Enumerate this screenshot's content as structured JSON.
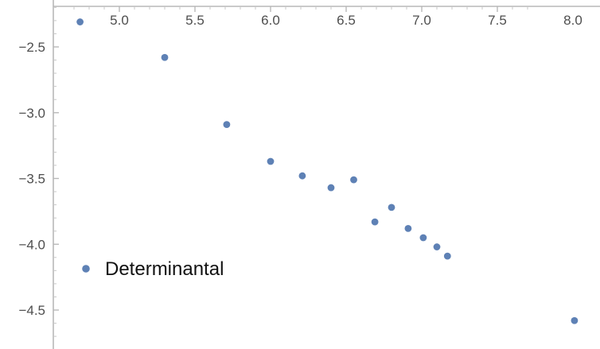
{
  "chart_data": {
    "type": "scatter",
    "title": "",
    "xlabel": "",
    "ylabel": "",
    "xlim": [
      4.65,
      8.08
    ],
    "ylim": [
      -4.7,
      -2.2
    ],
    "x_ticks": [
      5.0,
      5.5,
      6.0,
      6.5,
      7.0,
      7.5,
      8.0
    ],
    "x_tick_labels": [
      "5.0",
      "5.5",
      "6.0",
      "6.5",
      "7.0",
      "7.5",
      "8.0"
    ],
    "y_ticks": [
      -2.5,
      -3.0,
      -3.5,
      -4.0,
      -4.5
    ],
    "y_tick_labels": [
      "−2.5",
      "−3.0",
      "−3.5",
      "−4.0",
      "−4.5"
    ],
    "grid": false,
    "legend": {
      "placement": "left",
      "entries": [
        "Determinantal"
      ]
    },
    "series": [
      {
        "name": "Determinantal",
        "color": "#5e81b5",
        "points": [
          {
            "x": 4.74,
            "y": -2.31
          },
          {
            "x": 5.3,
            "y": -2.58
          },
          {
            "x": 5.71,
            "y": -3.09
          },
          {
            "x": 6.0,
            "y": -3.37
          },
          {
            "x": 6.21,
            "y": -3.48
          },
          {
            "x": 6.4,
            "y": -3.57
          },
          {
            "x": 6.55,
            "y": -3.51
          },
          {
            "x": 6.69,
            "y": -3.83
          },
          {
            "x": 6.8,
            "y": -3.72
          },
          {
            "x": 6.91,
            "y": -3.88
          },
          {
            "x": 7.01,
            "y": -3.95
          },
          {
            "x": 7.1,
            "y": -4.02
          },
          {
            "x": 7.17,
            "y": -4.09
          },
          {
            "x": 8.01,
            "y": -4.58
          }
        ]
      }
    ]
  }
}
